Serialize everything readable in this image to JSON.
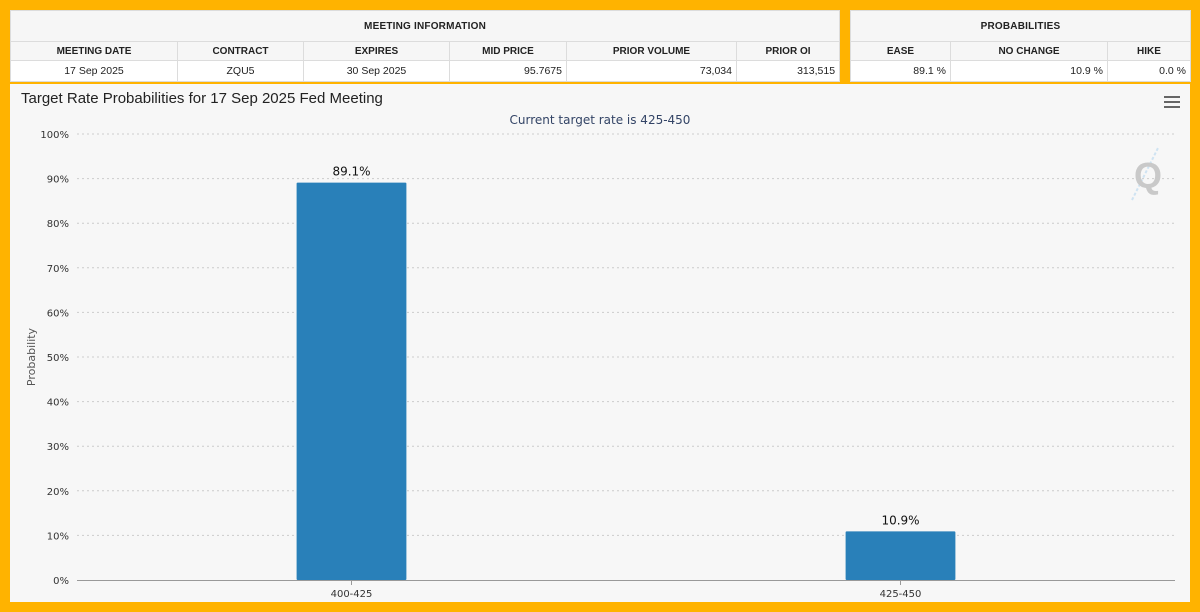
{
  "meeting_info": {
    "group_header": "MEETING INFORMATION",
    "columns": [
      "MEETING DATE",
      "CONTRACT",
      "EXPIRES",
      "MID PRICE",
      "PRIOR VOLUME",
      "PRIOR OI"
    ],
    "row": [
      "17 Sep 2025",
      "ZQU5",
      "30 Sep 2025",
      "95.7675",
      "73,034",
      "313,515"
    ]
  },
  "probabilities": {
    "group_header": "PROBABILITIES",
    "columns": [
      "EASE",
      "NO CHANGE",
      "HIKE"
    ],
    "row": [
      "89.1 %",
      "10.9 %",
      "0.0 %"
    ]
  },
  "colors": {
    "frame": "#FFB300",
    "bar": "#2980B9",
    "grid": "#cccccc"
  },
  "chart_data": {
    "type": "bar",
    "title": "Target Rate Probabilities for 17 Sep 2025 Fed Meeting",
    "subtitle": "Current target rate is 425-450",
    "xlabel": "",
    "ylabel": "Probability",
    "categories": [
      "400-425",
      "425-450"
    ],
    "values": [
      89.1,
      10.9
    ],
    "data_labels": [
      "89.1%",
      "10.9%"
    ],
    "ylim": [
      0,
      100
    ],
    "y_ticks": [
      0,
      10,
      20,
      30,
      40,
      50,
      60,
      70,
      80,
      90,
      100
    ],
    "y_tick_suffix": "%",
    "grid": true,
    "watermark": "Q"
  }
}
